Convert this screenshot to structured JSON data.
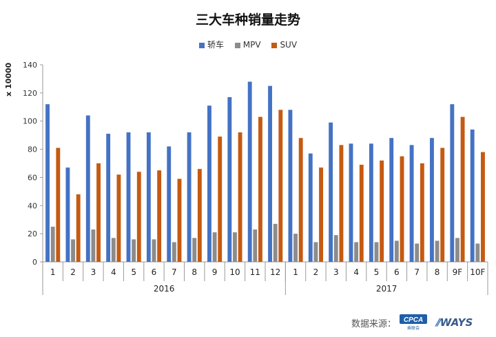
{
  "chart_data": {
    "type": "bar",
    "title": "三大车种销量走势",
    "ylabel": "x 10000",
    "ylim": [
      0,
      140
    ],
    "yticks": [
      0,
      20,
      40,
      60,
      80,
      100,
      120,
      140
    ],
    "categories": [
      "1",
      "2",
      "3",
      "4",
      "5",
      "6",
      "7",
      "8",
      "9",
      "10",
      "11",
      "12",
      "1",
      "2",
      "3",
      "4",
      "5",
      "6",
      "7",
      "8",
      "9F",
      "10F"
    ],
    "groups": [
      {
        "label": "2016",
        "start": 0,
        "end": 11
      },
      {
        "label": "2017",
        "start": 12,
        "end": 21
      }
    ],
    "series": [
      {
        "name": "轿车",
        "color": "#4472c4",
        "values": [
          112,
          67,
          104,
          91,
          92,
          92,
          82,
          92,
          111,
          117,
          128,
          125,
          108,
          77,
          99,
          84,
          84,
          88,
          83,
          88,
          112,
          94
        ]
      },
      {
        "name": "MPV",
        "color": "#8c8c8c",
        "values": [
          25,
          16,
          23,
          17,
          16,
          16,
          14,
          17,
          21,
          21,
          23,
          27,
          20,
          14,
          19,
          14,
          14,
          15,
          13,
          15,
          17,
          13
        ]
      },
      {
        "name": "SUV",
        "color": "#c55a11",
        "values": [
          81,
          48,
          70,
          62,
          64,
          65,
          59,
          66,
          89,
          92,
          103,
          108,
          88,
          67,
          83,
          69,
          72,
          75,
          70,
          81,
          103,
          78
        ]
      }
    ],
    "grid": false,
    "legend_position": "top"
  },
  "footer": {
    "source_label": "数据来源：",
    "logo_cpca": "CPCA",
    "logo_cpca_sub": "乘联会",
    "logo_ways": "WAYS"
  }
}
